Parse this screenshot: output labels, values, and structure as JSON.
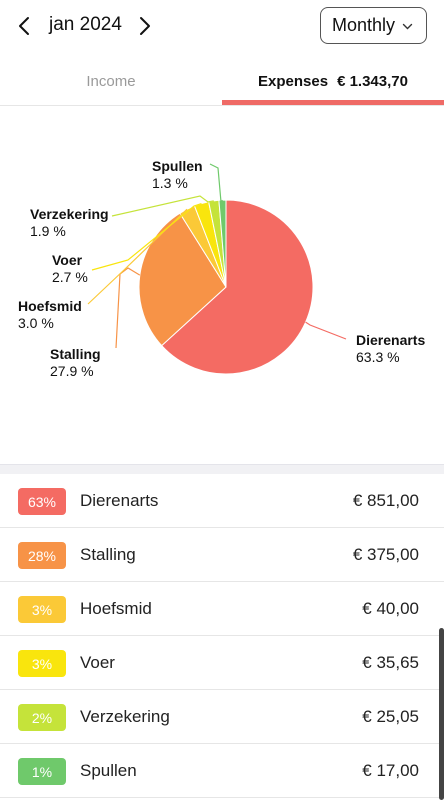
{
  "header": {
    "month": "jan 2024",
    "period": "Monthly"
  },
  "tabs": {
    "income": "Income",
    "expenses_label": "Expenses",
    "expenses_total": "€ 1.343,70"
  },
  "chart_data": {
    "type": "pie",
    "slices": [
      {
        "name": "Dierenarts",
        "percent": 63.3,
        "label": "63.3 %",
        "color": "#f46b63"
      },
      {
        "name": "Stalling",
        "percent": 27.9,
        "label": "27.9 %",
        "color": "#f79347"
      },
      {
        "name": "Hoefsmid",
        "percent": 3.0,
        "label": "3.0 %",
        "color": "#fbc937"
      },
      {
        "name": "Voer",
        "percent": 2.7,
        "label": "2.7 %",
        "color": "#f9e50d"
      },
      {
        "name": "Verzekering",
        "percent": 1.9,
        "label": "1.9 %",
        "color": "#c5e33a"
      },
      {
        "name": "Spullen",
        "percent": 1.3,
        "label": "1.3 %",
        "color": "#6fc96b"
      }
    ]
  },
  "list": [
    {
      "badge": "63%",
      "name": "Dierenarts",
      "amount": "€ 851,00",
      "color": "#f46b63"
    },
    {
      "badge": "28%",
      "name": "Stalling",
      "amount": "€ 375,00",
      "color": "#f79347"
    },
    {
      "badge": "3%",
      "name": "Hoefsmid",
      "amount": "€ 40,00",
      "color": "#fbc937"
    },
    {
      "badge": "3%",
      "name": "Voer",
      "amount": "€ 35,65",
      "color": "#f9e50d"
    },
    {
      "badge": "2%",
      "name": "Verzekering",
      "amount": "€ 25,05",
      "color": "#c5e33a"
    },
    {
      "badge": "1%",
      "name": "Spullen",
      "amount": "€ 17,00",
      "color": "#6fc96b"
    }
  ]
}
